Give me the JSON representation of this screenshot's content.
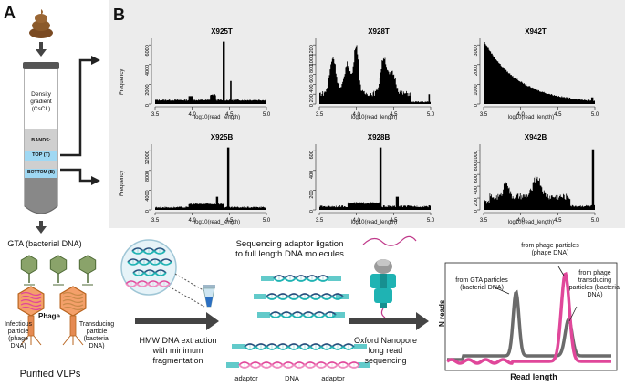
{
  "panel_a": {
    "letter": "A",
    "tube": {
      "gradient_label": "Density gradient (CsCL)",
      "bands_label": "BANDS:",
      "top_label": "TOP (T)",
      "bottom_label": "BOTTOM (B)"
    },
    "gta_label": "GTA (bacterial DNA)",
    "phage_label": "Phage",
    "infectious_label": "Infectious particle (phage DNA)",
    "transducing_label": "Transducing particle (bacterial DNA)",
    "purified_label": "Purified VLPs"
  },
  "panel_b": {
    "letter": "B",
    "xlabel": "log10(read_length)",
    "ylabel": "Frequency",
    "x_ticks": [
      "3.5",
      "4.0",
      "4.5",
      "5.0"
    ],
    "histograms": [
      {
        "title": "X925T",
        "y_ticks": [
          "0",
          "2000",
          "4000",
          "6000"
        ]
      },
      {
        "title": "X928T",
        "y_ticks": [
          "0",
          "200",
          "400",
          "600",
          "800",
          "1000",
          "1200"
        ]
      },
      {
        "title": "X942T",
        "y_ticks": [
          "0",
          "1000",
          "2000",
          "3000"
        ]
      },
      {
        "title": "X925B",
        "y_ticks": [
          "0",
          "4000",
          "8000",
          "12000"
        ]
      },
      {
        "title": "X928B",
        "y_ticks": [
          "0",
          "200",
          "400",
          "600"
        ]
      },
      {
        "title": "X942B",
        "y_ticks": [
          "0",
          "200",
          "400",
          "600",
          "800",
          "1000"
        ]
      }
    ]
  },
  "workflow": {
    "hmw_label": "HMW DNA extraction with minimum fragmentation",
    "ligation_label": "Sequencing adaptor ligation to full length DNA molecules",
    "adaptor_left": "adaptor",
    "dna_label": "DNA",
    "adaptor_right": "adaptor",
    "nanopore_label": "Oxford Nanopore long read sequencing"
  },
  "result_plot": {
    "ylabel": "N reads",
    "xlabel": "Read length",
    "gta_annotation": "from GTA particles (bacterial DNA)",
    "phage_annotation": "from phage particles (phage DNA)",
    "transducing_annotation": "from phage transducing particles (bacterial DNA)"
  },
  "colors": {
    "phage_pink": "#e0479a",
    "gta_green": "#8aa36a",
    "dna_teal": "#1fb3b3",
    "dna_dark": "#2a4a7a",
    "grey_line": "#555555"
  }
}
